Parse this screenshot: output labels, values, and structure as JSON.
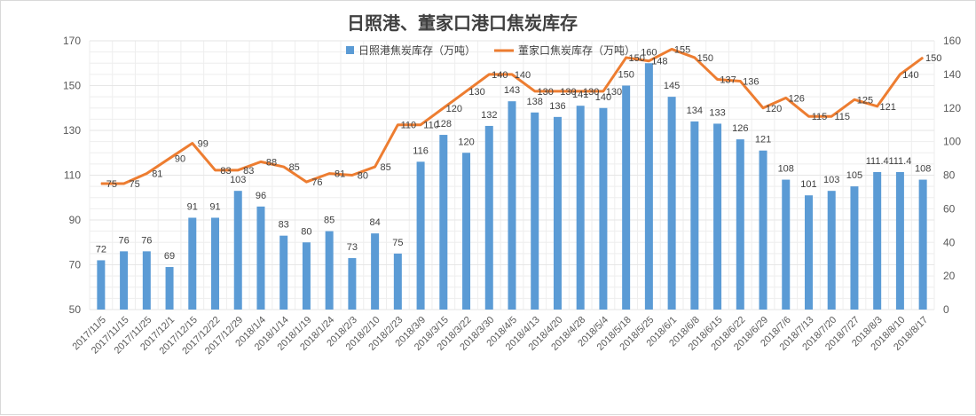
{
  "chart_data": {
    "type": "bar",
    "title": "日照港、董家口港口焦炭库存",
    "categories": [
      "2017/11/5",
      "2017/11/15",
      "2017/11/25",
      "2017/12/1",
      "2017/12/15",
      "2017/12/22",
      "2017/12/29",
      "2018/1/4",
      "2018/1/14",
      "2018/1/19",
      "2018/1/24",
      "2018/2/3",
      "2018/2/10",
      "2018/2/23",
      "2018/3/9",
      "2018/3/15",
      "2018/3/22",
      "2018/3/30",
      "2018/4/5",
      "2018/4/13",
      "2018/4/20",
      "2018/4/28",
      "2018/5/4",
      "2018/5/18",
      "2018/5/25",
      "2018/6/1",
      "2018/6/8",
      "2018/6/15",
      "2018/6/22",
      "2018/6/29",
      "2018/7/6",
      "2018/7/13",
      "2018/7/20",
      "2018/7/27",
      "2018/8/3",
      "2018/8/10",
      "2018/8/17"
    ],
    "series": [
      {
        "name": "日照港焦炭库存（万吨）",
        "chart": "bar",
        "axis": "left",
        "color": "#5b9bd5",
        "values": [
          72,
          76,
          76,
          69,
          91,
          91,
          103,
          96,
          83,
          80,
          85,
          73,
          84,
          75,
          116,
          128,
          120,
          132,
          143,
          138,
          136,
          141,
          140,
          150,
          160,
          145,
          134,
          133,
          126,
          121,
          108,
          101,
          103,
          105,
          111.4,
          111.4,
          108
        ]
      },
      {
        "name": "董家口焦炭库存（万吨）",
        "chart": "line",
        "axis": "right",
        "color": "#ed7d31",
        "values": [
          75,
          75,
          81,
          90,
          99,
          83,
          83,
          88,
          85,
          76,
          81,
          80,
          85,
          110,
          110,
          120,
          130,
          140,
          140,
          130,
          130,
          130,
          130,
          150,
          148,
          155,
          150,
          137,
          136,
          120,
          126,
          115,
          115,
          125,
          121,
          140,
          150
        ]
      }
    ],
    "y_left": {
      "min": 50,
      "max": 170,
      "ticks": [
        50,
        70,
        90,
        110,
        130,
        150,
        170
      ]
    },
    "y_right": {
      "min": 0,
      "max": 160,
      "ticks": [
        0,
        20,
        40,
        60,
        80,
        100,
        120,
        140,
        160
      ]
    },
    "grid": true,
    "legend_position": "top"
  }
}
